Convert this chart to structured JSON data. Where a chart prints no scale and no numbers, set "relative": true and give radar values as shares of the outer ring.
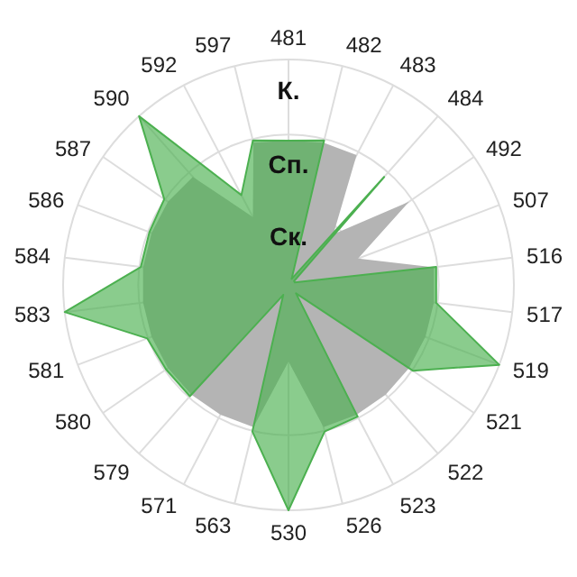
{
  "chart_data": {
    "type": "radar",
    "relative": true,
    "grid": true,
    "categories": [
      "481",
      "482",
      "483",
      "484",
      "492",
      "507",
      "516",
      "517",
      "519",
      "521",
      "522",
      "523",
      "526",
      "530",
      "563",
      "571",
      "579",
      "580",
      "581",
      "583",
      "584",
      "586",
      "587",
      "590",
      "592",
      "597"
    ],
    "series": [
      {
        "color": "#b4b4b4",
        "values": [
          0.64,
          0.65,
          0.65,
          0.3,
          0.65,
          0.33,
          0.65,
          0.65,
          0.65,
          0.65,
          0.65,
          0.65,
          0.65,
          0.34,
          0.65,
          0.65,
          0.65,
          0.65,
          0.65,
          0.65,
          0.65,
          0.65,
          0.65,
          0.64,
          0.34,
          0.65
        ]
      },
      {
        "color": "#4cb050",
        "values": [
          0.64,
          0.66,
          0.03,
          0.64,
          0.03,
          0.03,
          0.66,
          0.66,
          1,
          0.67,
          0.05,
          0.66,
          0.67,
          1,
          0.67,
          0.05,
          0.66,
          0.66,
          0.67,
          1,
          0.66,
          0.66,
          0.67,
          1,
          0.45,
          0.66
        ]
      }
    ],
    "annotations": [
      "К.",
      "Сп.",
      "Ск."
    ]
  }
}
